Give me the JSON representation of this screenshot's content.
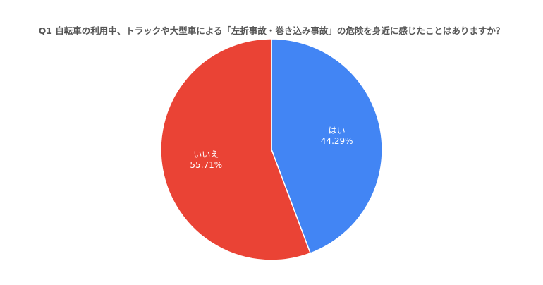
{
  "chart_data": {
    "type": "pie",
    "title": "Q1 自転車の利用中、トラックや大型車による「左折事故・巻き込み事故」の危険を身近に感じたことはありますか？",
    "slices": [
      {
        "label": "はい",
        "value": 44.29,
        "value_label": "44.29%",
        "color": "#4285f4"
      },
      {
        "label": "いいえ",
        "value": 55.71,
        "value_label": "55.71%",
        "color": "#ea4335"
      }
    ],
    "start": "top",
    "direction": "clockwise",
    "legend": "none"
  }
}
